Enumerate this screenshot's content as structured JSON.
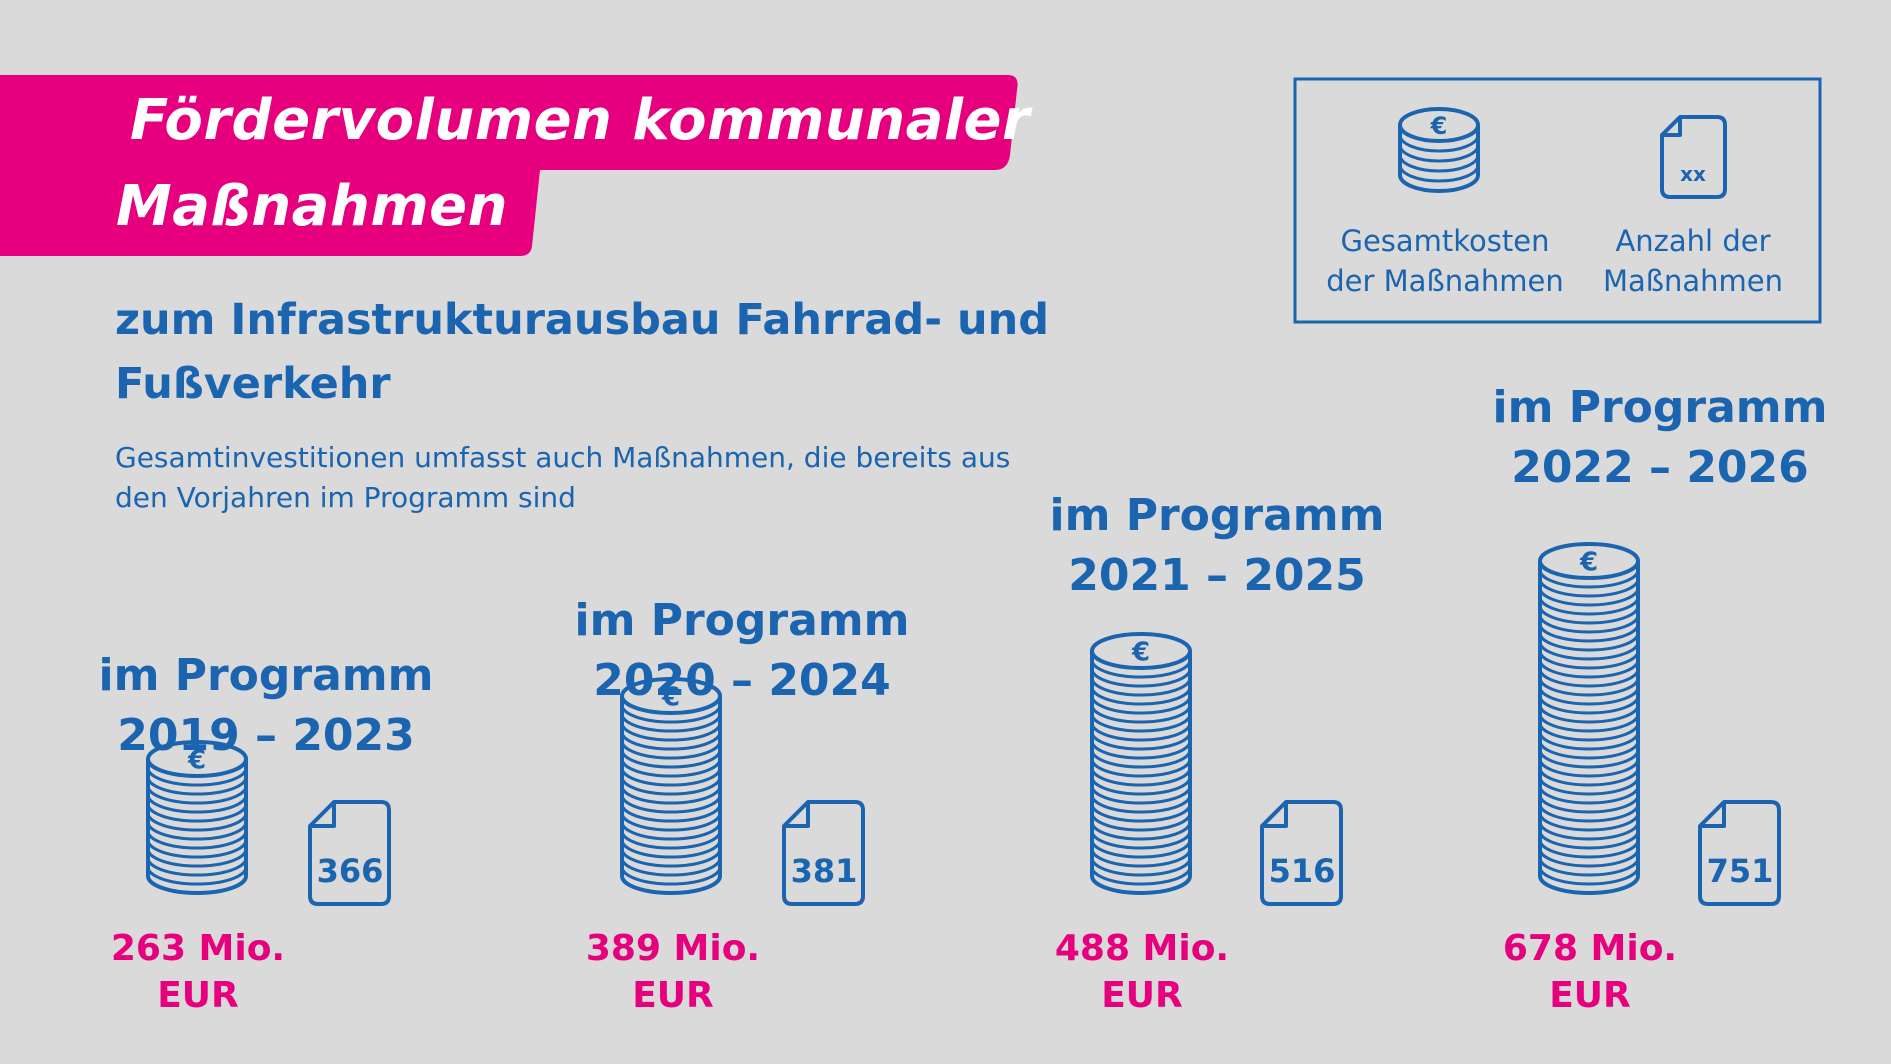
{
  "title": {
    "line1": "Fördervolumen kommunaler",
    "line2": "Maßnahmen"
  },
  "subtitle": "zum Infrastrukturausbau Fahrrad- und Fußverkehr",
  "note": "Gesamtinvestitionen umfasst auch Maßnahmen, die bereits aus den Vorjahren im Programm sind",
  "legend": {
    "cost_label": "Gesamtkosten der Maßnahmen",
    "count_label": "Anzahl der Maßnahmen",
    "doc_placeholder": "xx",
    "coin_icon": "coin-stack-icon",
    "doc_icon": "document-icon"
  },
  "colors": {
    "blue": "#1b64b0",
    "magenta": "#e6007e",
    "background": "#dadada"
  },
  "chart_data": {
    "type": "bar",
    "categories": [
      "im Programm 2019 – 2023",
      "im Programm 2020 – 2024",
      "im Programm 2021 – 2025",
      "im Programm 2022 – 2026"
    ],
    "series": [
      {
        "name": "Gesamtkosten der Maßnahmen",
        "values": [
          263,
          389,
          488,
          678
        ],
        "unit": "Mio. EUR",
        "labels": [
          "263 Mio. EUR",
          "389 Mio. EUR",
          "488 Mio. EUR",
          "678 Mio. EUR"
        ]
      },
      {
        "name": "Anzahl der Maßnahmen",
        "values": [
          366,
          381,
          516,
          751
        ],
        "labels": [
          "366",
          "381",
          "516",
          "751"
        ]
      }
    ],
    "programs": [
      {
        "line1": "im Programm",
        "line2": "2019 – 2023",
        "cost_label": "263 Mio. EUR",
        "count_label": "366"
      },
      {
        "line1": "im Programm",
        "line2": "2020 – 2024",
        "cost_label": "389 Mio. EUR",
        "count_label": "381"
      },
      {
        "line1": "im Programm",
        "line2": "2021 – 2025",
        "cost_label": "488 Mio. EUR",
        "count_label": "516"
      },
      {
        "line1": "im Programm",
        "line2": "2022 – 2026",
        "cost_label": "678 Mio. EUR",
        "count_label": "751"
      }
    ]
  }
}
